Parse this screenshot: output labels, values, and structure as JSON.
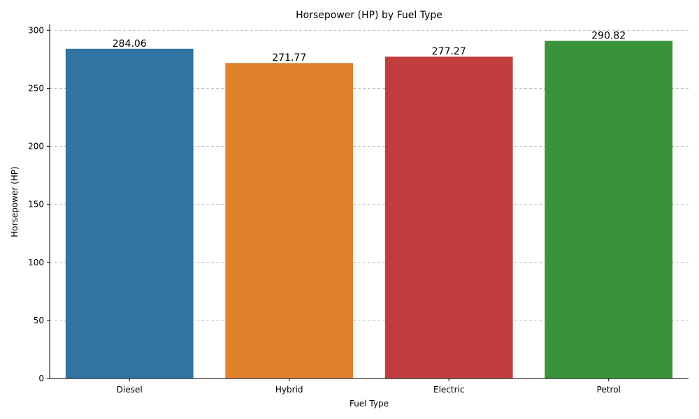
{
  "chart_data": {
    "type": "bar",
    "title": "Horsepower (HP) by Fuel Type",
    "xlabel": "Fuel Type",
    "ylabel": "Horsepower (HP)",
    "categories": [
      "Diesel",
      "Hybrid",
      "Electric",
      "Petrol"
    ],
    "values": [
      284.06,
      271.77,
      277.27,
      290.82
    ],
    "value_labels": [
      "284.06",
      "271.77",
      "277.27",
      "290.82"
    ],
    "colors": [
      "#3274a1",
      "#e1812c",
      "#c03d3e",
      "#3a923a"
    ],
    "ylim": [
      0,
      305
    ],
    "yticks": [
      0,
      50,
      100,
      150,
      200,
      250,
      300
    ],
    "ytick_labels": [
      "0",
      "50",
      "100",
      "150",
      "200",
      "250",
      "300"
    ],
    "grid": "y-dashed",
    "legend": "none"
  }
}
